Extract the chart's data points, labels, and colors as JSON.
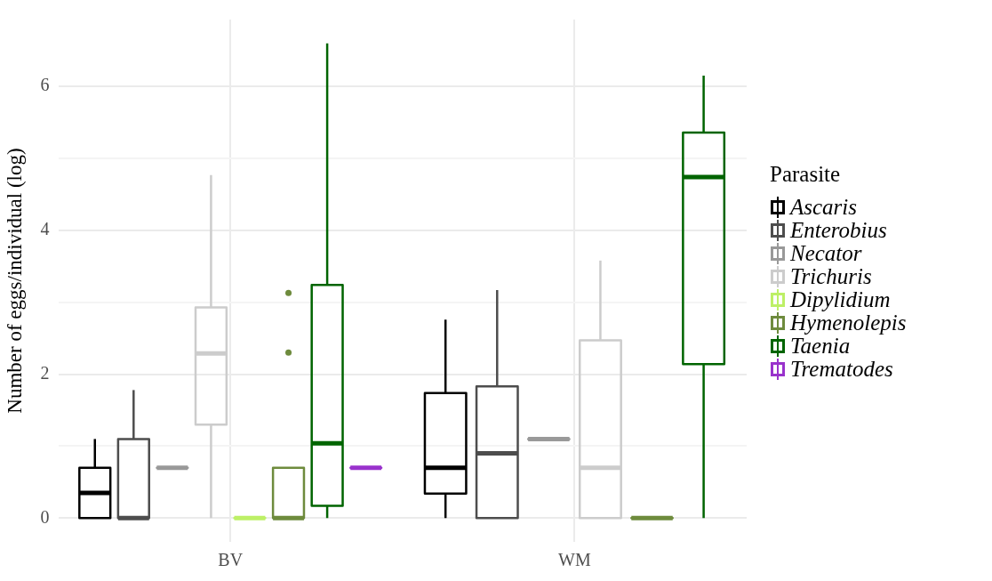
{
  "chart_data": {
    "type": "box",
    "ylabel": "Number of eggs/individual (log)",
    "legend_title": "Parasite",
    "categories": [
      "BV",
      "WM"
    ],
    "ylim": [
      -0.33,
      6.93
    ],
    "yticks": [
      0,
      {
        "value": 1,
        "label": null
      },
      2,
      {
        "value": 3,
        "label": null
      },
      4,
      {
        "value": 5,
        "label": null
      },
      6
    ],
    "grid": true,
    "legend": "right",
    "series": [
      {
        "name": "Ascaris",
        "color": "#000000",
        "boxes": [
          {
            "low": 0,
            "q1": 0,
            "median": 0.35,
            "q3": 0.7,
            "high": 1.1
          },
          {
            "low": 0,
            "q1": 0.34,
            "median": 0.7,
            "q3": 1.74,
            "high": 2.76
          }
        ]
      },
      {
        "name": "Enterobius",
        "color": "#4d4d4d",
        "boxes": [
          {
            "low": 0,
            "q1": 0,
            "median": 0,
            "q3": 1.1,
            "high": 1.78
          },
          {
            "low": 0,
            "q1": 0,
            "median": 0.9,
            "q3": 1.83,
            "high": 3.17
          }
        ]
      },
      {
        "name": "Necator",
        "color": "#999999",
        "boxes": [
          {
            "low": 0.7,
            "q1": 0.7,
            "median": 0.7,
            "q3": 0.7,
            "high": 0.7
          },
          {
            "low": 1.1,
            "q1": 1.1,
            "median": 1.1,
            "q3": 1.1,
            "high": 1.1
          }
        ]
      },
      {
        "name": "Trichuris",
        "color": "#cccccc",
        "boxes": [
          {
            "low": 0,
            "q1": 1.3,
            "median": 2.29,
            "q3": 2.93,
            "high": 4.77
          },
          {
            "low": 0,
            "q1": 0,
            "median": 0.7,
            "q3": 2.47,
            "high": 3.58
          }
        ]
      },
      {
        "name": "Dipylidium",
        "color": "#bdf066",
        "boxes": [
          {
            "low": 0,
            "q1": 0,
            "median": 0,
            "q3": 0,
            "high": 0
          },
          null
        ]
      },
      {
        "name": "Hymenolepis",
        "color": "#6e8b3d",
        "boxes": [
          {
            "low": 0,
            "q1": 0,
            "median": 0,
            "q3": 0.7,
            "high": 0.7,
            "outliers": [
              2.3,
              3.13
            ]
          },
          {
            "low": 0,
            "q1": 0,
            "median": 0,
            "q3": 0,
            "high": 0
          }
        ]
      },
      {
        "name": "Taenia",
        "color": "#006400",
        "boxes": [
          {
            "low": 0,
            "q1": 0.17,
            "median": 1.04,
            "q3": 3.24,
            "high": 6.6
          },
          {
            "low": 0,
            "q1": 2.14,
            "median": 4.74,
            "q3": 5.36,
            "high": 6.15
          }
        ]
      },
      {
        "name": "Trematodes",
        "color": "#9932cc",
        "boxes": [
          {
            "low": 0.7,
            "q1": 0.7,
            "median": 0.7,
            "q3": 0.7,
            "high": 0.7
          },
          null
        ]
      }
    ]
  }
}
